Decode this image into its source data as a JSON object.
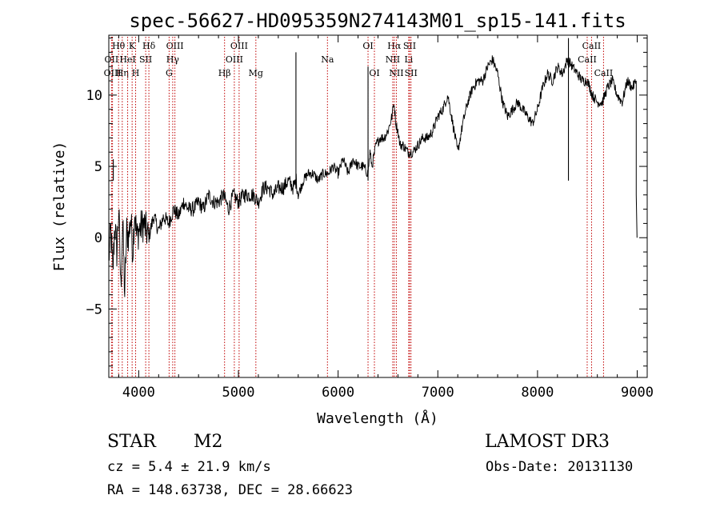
{
  "chart_data": {
    "type": "line",
    "title": "spec-56627-HD095359N274143M01_sp15-141.fits",
    "xlabel": "Wavelength (Å)",
    "ylabel": "Flux (relative)",
    "xlim": [
      3700,
      9100
    ],
    "ylim": [
      -9.8,
      14.2
    ],
    "xticks": [
      4000,
      5000,
      6000,
      7000,
      8000,
      9000
    ],
    "yticks": [
      -5,
      0,
      5,
      10
    ],
    "xtick_labels": [
      "4000",
      "5000",
      "6000",
      "7000",
      "8000",
      "9000"
    ],
    "ytick_labels": [
      "−5",
      "0",
      "5",
      "10"
    ],
    "series": [
      {
        "name": "flux",
        "x": [
          3700,
          3720,
          3740,
          3760,
          3780,
          3800,
          3820,
          3840,
          3860,
          3880,
          3900,
          3920,
          3940,
          3960,
          3980,
          4000,
          4050,
          4100,
          4150,
          4200,
          4250,
          4300,
          4350,
          4400,
          4450,
          4500,
          4550,
          4600,
          4650,
          4700,
          4750,
          4800,
          4850,
          4900,
          4950,
          5000,
          5050,
          5100,
          5150,
          5200,
          5250,
          5300,
          5350,
          5400,
          5450,
          5500,
          5550,
          5580,
          5600,
          5650,
          5700,
          5750,
          5800,
          5850,
          5900,
          5950,
          6000,
          6050,
          6100,
          6150,
          6200,
          6250,
          6300,
          6320,
          6340,
          6380,
          6420,
          6460,
          6500,
          6540,
          6560,
          6580,
          6600,
          6620,
          6650,
          6700,
          6750,
          6800,
          6850,
          6900,
          6950,
          7000,
          7050,
          7100,
          7150,
          7200,
          7250,
          7300,
          7350,
          7400,
          7450,
          7500,
          7550,
          7600,
          7650,
          7700,
          7750,
          7800,
          7850,
          7900,
          7950,
          8000,
          8050,
          8100,
          8150,
          8200,
          8250,
          8300,
          8350,
          8400,
          8450,
          8500,
          8550,
          8600,
          8650,
          8700,
          8750,
          8800,
          8850,
          8900,
          8950,
          8990
        ],
        "values": [
          -1.5,
          0.5,
          -2.5,
          1.0,
          -1.0,
          2.0,
          -3.5,
          1.0,
          -4.0,
          0.5,
          0.0,
          1.5,
          -1.0,
          2.0,
          0.0,
          0.5,
          1.0,
          0.0,
          1.5,
          0.5,
          1.5,
          1.0,
          2.0,
          1.5,
          2.5,
          2.0,
          2.0,
          2.5,
          2.0,
          3.0,
          2.5,
          2.5,
          3.0,
          2.0,
          3.0,
          2.5,
          3.0,
          3.0,
          3.0,
          2.5,
          3.5,
          3.5,
          3.0,
          3.5,
          3.5,
          4.0,
          3.5,
          4.0,
          3.0,
          4.0,
          4.5,
          4.5,
          4.0,
          4.5,
          4.5,
          5.0,
          4.5,
          5.5,
          4.5,
          5.5,
          5.0,
          5.0,
          4.5,
          6.0,
          5.0,
          6.5,
          7.0,
          7.0,
          7.5,
          8.5,
          9.5,
          8.0,
          7.5,
          6.5,
          6.5,
          6.0,
          6.0,
          6.5,
          7.0,
          7.0,
          7.5,
          8.5,
          9.0,
          10.0,
          8.0,
          6.0,
          8.0,
          9.5,
          10.5,
          11.0,
          11.0,
          12.0,
          12.5,
          11.5,
          9.5,
          8.5,
          9.0,
          9.5,
          9.0,
          8.5,
          8.0,
          9.0,
          10.5,
          11.5,
          11.0,
          12.0,
          11.5,
          12.5,
          12.0,
          11.5,
          11.0,
          11.0,
          10.0,
          9.5,
          9.5,
          10.5,
          11.0,
          10.0,
          9.5,
          11.0,
          10.5,
          11.0
        ]
      }
    ],
    "spikes": [
      {
        "x": 3745,
        "y": 5.5
      },
      {
        "x": 5577,
        "y": 13.0
      },
      {
        "x": 6300,
        "y": 12.0
      },
      {
        "x": 8310,
        "y": 14.0
      }
    ],
    "line_markers": [
      {
        "label": "Hθ",
        "x": 3798,
        "row": 0
      },
      {
        "label": "OII",
        "x": 3727,
        "row": 1
      },
      {
        "label": "OIII",
        "x": 3737,
        "row": 2
      },
      {
        "label": "Hη",
        "x": 3835,
        "row": 2
      },
      {
        "label": "K",
        "x": 3934,
        "row": 0
      },
      {
        "label": "HeI",
        "x": 3889,
        "row": 1
      },
      {
        "label": "SII",
        "x": 4070,
        "row": 1
      },
      {
        "label": "H",
        "x": 3969,
        "row": 2
      },
      {
        "label": "Hδ",
        "x": 4102,
        "row": 0
      },
      {
        "label": "OIII",
        "x": 4363,
        "row": 0
      },
      {
        "label": "Hγ",
        "x": 4341,
        "row": 1
      },
      {
        "label": "G",
        "x": 4305,
        "row": 2
      },
      {
        "label": "Hβ",
        "x": 4861,
        "row": 2
      },
      {
        "label": "OIII",
        "x": 5007,
        "row": 0
      },
      {
        "label": "OIII",
        "x": 4959,
        "row": 1
      },
      {
        "label": "Mg",
        "x": 5175,
        "row": 2
      },
      {
        "label": "Na",
        "x": 5893,
        "row": 1
      },
      {
        "label": "OI",
        "x": 6300,
        "row": 0
      },
      {
        "label": "OI",
        "x": 6364,
        "row": 2
      },
      {
        "label": "Hα",
        "x": 6563,
        "row": 0
      },
      {
        "label": "SII",
        "x": 6717,
        "row": 0
      },
      {
        "label": "NII",
        "x": 6548,
        "row": 1
      },
      {
        "label": "Li",
        "x": 6708,
        "row": 1
      },
      {
        "label": "NII",
        "x": 6584,
        "row": 2
      },
      {
        "label": "SII",
        "x": 6731,
        "row": 2
      },
      {
        "label": "CaII",
        "x": 8542,
        "row": 0
      },
      {
        "label": "CaII",
        "x": 8498,
        "row": 1
      },
      {
        "label": "CaII",
        "x": 8662,
        "row": 2
      }
    ]
  },
  "info": {
    "object_class": "STAR",
    "subclass": "M2",
    "survey": "LAMOST DR3",
    "cz": "cz = 5.4 ± 21.9 km/s",
    "obs_date": "Obs-Date: 20131130",
    "coords": "RA = 148.63738, DEC =  28.66623"
  }
}
